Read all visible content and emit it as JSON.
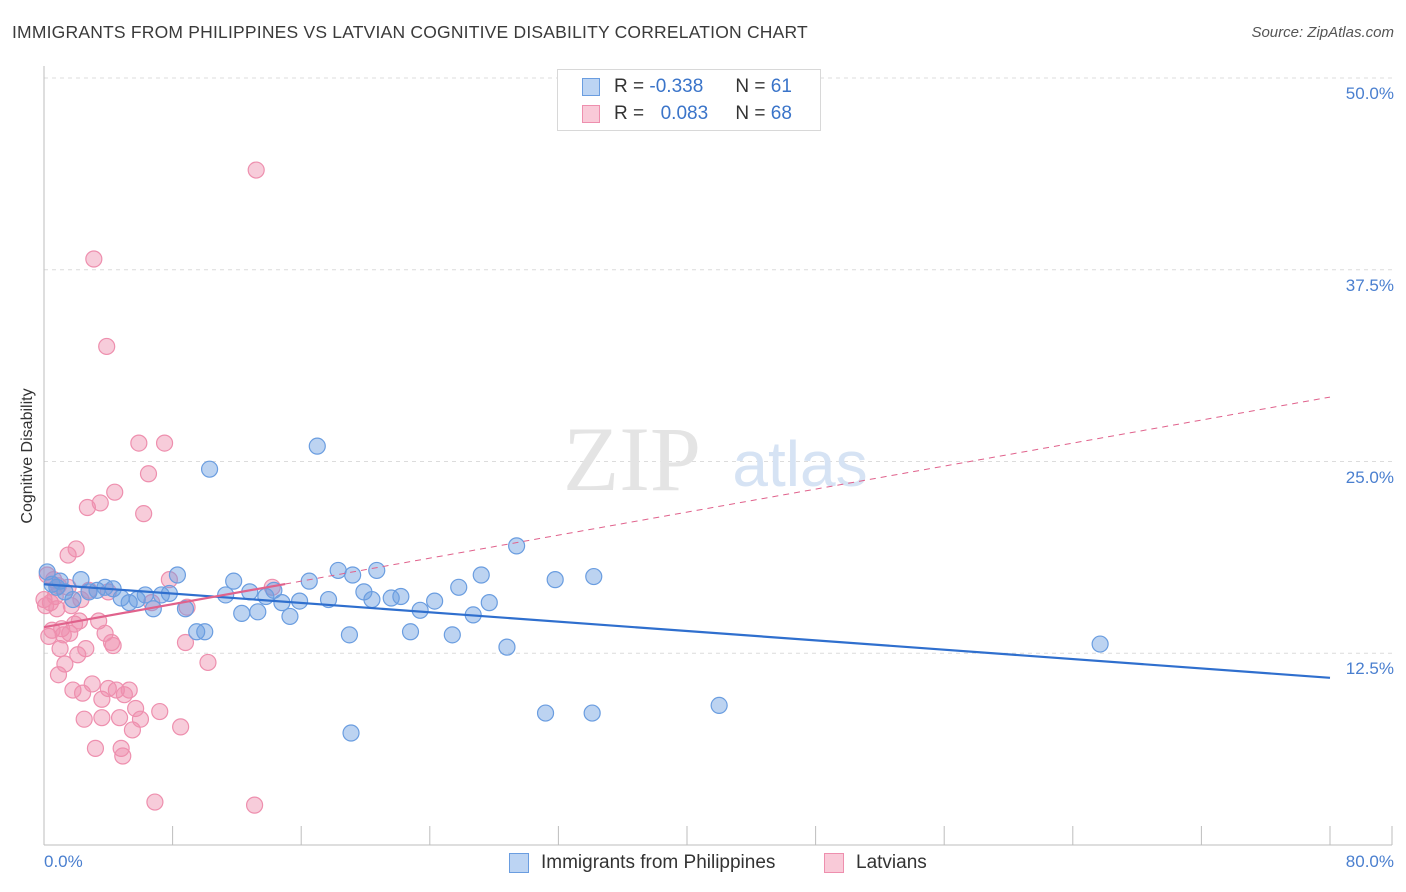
{
  "title": "IMMIGRANTS FROM PHILIPPINES VS LATVIAN COGNITIVE DISABILITY CORRELATION CHART",
  "source": "Source: ZipAtlas.com",
  "watermark": {
    "zip": "ZIP",
    "atlas": "atlas"
  },
  "legend": {
    "r_label": "R =",
    "n_label": "N =",
    "rows": [
      {
        "r": "-0.338",
        "n": "61",
        "color": "#a9c6ee"
      },
      {
        "r": "0.083",
        "n": "68",
        "color": "#f6b8cb"
      }
    ]
  },
  "bottom_legend": {
    "series1": "Immigrants from Philippines",
    "series2": "Latvians"
  },
  "chart_data": {
    "type": "scatter",
    "title": "IMMIGRANTS FROM PHILIPPINES VS LATVIAN COGNITIVE DISABILITY CORRELATION CHART",
    "xlabel": "",
    "ylabel": "Cognitive Disability",
    "xlim": [
      0,
      80
    ],
    "ylim": [
      0,
      50
    ],
    "x_tick_labels": [
      "0.0%",
      "80.0%"
    ],
    "y_tick_labels": [
      "12.5%",
      "25.0%",
      "37.5%",
      "50.0%"
    ],
    "y_ticks": [
      12.5,
      25.0,
      37.5,
      50.0
    ],
    "grid": true,
    "legend_position": "top-center",
    "colors": {
      "philippines": "#6a9de0",
      "latvians": "#ee8fae",
      "blue_line": "#2f6fce",
      "pink_line": "#e0628c"
    },
    "series": [
      {
        "name": "Immigrants from Philippines",
        "points": [
          [
            0.2,
            17.8
          ],
          [
            0.5,
            17.0
          ],
          [
            0.8,
            16.8
          ],
          [
            1.0,
            17.2
          ],
          [
            1.3,
            16.5
          ],
          [
            1.8,
            16.0
          ],
          [
            2.3,
            17.3
          ],
          [
            2.8,
            16.5
          ],
          [
            3.3,
            16.6
          ],
          [
            3.8,
            16.8
          ],
          [
            4.3,
            16.7
          ],
          [
            4.8,
            16.1
          ],
          [
            5.3,
            15.8
          ],
          [
            5.8,
            16.0
          ],
          [
            6.3,
            16.3
          ],
          [
            6.8,
            15.4
          ],
          [
            7.3,
            16.3
          ],
          [
            7.8,
            16.4
          ],
          [
            8.3,
            17.6
          ],
          [
            8.8,
            15.4
          ],
          [
            9.5,
            13.9
          ],
          [
            10.3,
            24.5
          ],
          [
            11.3,
            16.3
          ],
          [
            11.8,
            17.2
          ],
          [
            12.3,
            15.1
          ],
          [
            12.8,
            16.5
          ],
          [
            13.3,
            15.2
          ],
          [
            13.8,
            16.2
          ],
          [
            14.3,
            16.6
          ],
          [
            14.8,
            15.8
          ],
          [
            15.3,
            14.9
          ],
          [
            15.9,
            15.9
          ],
          [
            16.5,
            17.2
          ],
          [
            17.0,
            26.0
          ],
          [
            17.7,
            16.0
          ],
          [
            18.3,
            17.9
          ],
          [
            19.0,
            13.7
          ],
          [
            19.2,
            17.6
          ],
          [
            19.9,
            16.5
          ],
          [
            20.4,
            16.0
          ],
          [
            20.7,
            17.9
          ],
          [
            21.6,
            16.1
          ],
          [
            22.2,
            16.2
          ],
          [
            22.8,
            13.9
          ],
          [
            23.4,
            15.3
          ],
          [
            24.3,
            15.9
          ],
          [
            25.4,
            13.7
          ],
          [
            25.8,
            16.8
          ],
          [
            26.7,
            15.0
          ],
          [
            27.2,
            17.6
          ],
          [
            27.7,
            15.8
          ],
          [
            28.8,
            12.9
          ],
          [
            29.4,
            19.5
          ],
          [
            31.2,
            8.6
          ],
          [
            31.8,
            17.3
          ],
          [
            34.2,
            17.5
          ],
          [
            34.1,
            8.6
          ],
          [
            42.0,
            9.1
          ],
          [
            65.7,
            13.1
          ],
          [
            10.0,
            13.9
          ],
          [
            19.1,
            7.3
          ]
        ]
      },
      {
        "name": "Latvians",
        "points": [
          [
            0.0,
            16.0
          ],
          [
            0.1,
            15.6
          ],
          [
            0.2,
            17.6
          ],
          [
            0.3,
            13.6
          ],
          [
            0.4,
            15.8
          ],
          [
            0.5,
            14.0
          ],
          [
            0.6,
            17.3
          ],
          [
            0.7,
            16.2
          ],
          [
            0.8,
            15.4
          ],
          [
            0.9,
            11.1
          ],
          [
            1.0,
            12.8
          ],
          [
            1.1,
            14.1
          ],
          [
            1.2,
            13.7
          ],
          [
            1.3,
            11.8
          ],
          [
            1.5,
            18.9
          ],
          [
            1.6,
            13.8
          ],
          [
            1.7,
            15.6
          ],
          [
            1.8,
            10.1
          ],
          [
            1.9,
            14.4
          ],
          [
            2.0,
            19.3
          ],
          [
            2.1,
            12.4
          ],
          [
            2.3,
            16.0
          ],
          [
            2.4,
            9.9
          ],
          [
            2.5,
            8.2
          ],
          [
            2.6,
            12.8
          ],
          [
            2.7,
            22.0
          ],
          [
            2.8,
            16.6
          ],
          [
            3.0,
            10.5
          ],
          [
            3.2,
            6.3
          ],
          [
            3.4,
            14.6
          ],
          [
            3.5,
            22.3
          ],
          [
            3.6,
            9.5
          ],
          [
            3.6,
            8.3
          ],
          [
            3.8,
            13.8
          ],
          [
            3.9,
            32.5
          ],
          [
            4.0,
            16.5
          ],
          [
            4.2,
            13.2
          ],
          [
            4.3,
            13.0
          ],
          [
            4.4,
            23.0
          ],
          [
            4.5,
            10.1
          ],
          [
            4.7,
            8.3
          ],
          [
            4.8,
            6.3
          ],
          [
            4.9,
            5.8
          ],
          [
            5.0,
            9.8
          ],
          [
            5.3,
            10.1
          ],
          [
            5.5,
            7.5
          ],
          [
            5.7,
            8.9
          ],
          [
            5.9,
            26.2
          ],
          [
            6.0,
            8.2
          ],
          [
            6.2,
            21.6
          ],
          [
            6.5,
            24.2
          ],
          [
            6.7,
            15.8
          ],
          [
            6.9,
            2.8
          ],
          [
            7.2,
            8.7
          ],
          [
            7.5,
            26.2
          ],
          [
            7.8,
            17.3
          ],
          [
            8.5,
            7.7
          ],
          [
            8.8,
            13.2
          ],
          [
            8.9,
            15.5
          ],
          [
            10.2,
            11.9
          ],
          [
            13.2,
            44.0
          ],
          [
            13.1,
            2.6
          ],
          [
            14.2,
            16.8
          ],
          [
            3.1,
            38.2
          ],
          [
            4.0,
            10.2
          ],
          [
            1.5,
            16.8
          ],
          [
            2.2,
            14.6
          ],
          [
            0.9,
            16.9
          ]
        ]
      }
    ],
    "trend_lines": [
      {
        "name": "Immigrants from Philippines",
        "x": [
          0,
          80
        ],
        "y": [
          17.0,
          10.9
        ]
      },
      {
        "name": "Latvians",
        "x": [
          0,
          80
        ],
        "y": [
          14.2,
          29.2
        ]
      }
    ]
  }
}
